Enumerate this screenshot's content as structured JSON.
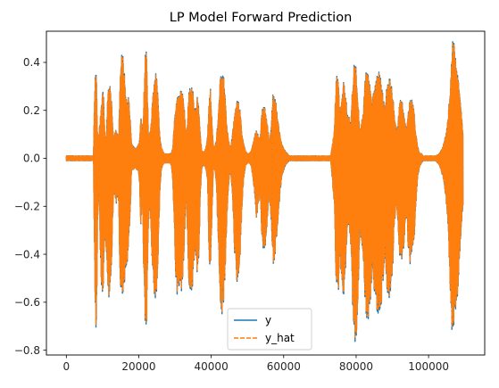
{
  "chart_data": {
    "type": "line",
    "title": "LP Model Forward Prediction",
    "xlabel": "",
    "ylabel": "",
    "xlim": [
      -5500,
      115500
    ],
    "ylim": [
      -0.82,
      0.53
    ],
    "xticks": [
      0,
      20000,
      40000,
      60000,
      80000,
      100000
    ],
    "xtick_labels": [
      "0",
      "20000",
      "40000",
      "60000",
      "80000",
      "100000"
    ],
    "yticks": [
      -0.8,
      -0.6,
      -0.4,
      -0.2,
      0.0,
      0.2,
      0.4
    ],
    "ytick_labels": [
      "−0.8",
      "−0.6",
      "−0.4",
      "−0.2",
      "0.0",
      "0.2",
      "0.4"
    ],
    "grid": false,
    "legend_position": "lower-center",
    "legend": [
      "y",
      "y_hat"
    ],
    "series": [
      {
        "name": "y",
        "color": "#1f77b4",
        "style": "solid",
        "x": [
          0,
          7500,
          7700,
          8000,
          8300,
          8600,
          9000,
          9400,
          9800,
          10200,
          10600,
          11000,
          11400,
          11800,
          12200,
          12600,
          13000,
          13300,
          13700,
          14100,
          14500,
          14800,
          15100,
          15500,
          15900,
          16300,
          16700,
          17100,
          17500,
          18000,
          18500,
          19000,
          19400,
          19800,
          20200,
          20600,
          21000,
          21400,
          21800,
          22200,
          22600,
          23000,
          23400,
          23800,
          24200,
          24600,
          25000,
          25400,
          25800,
          26200,
          26600,
          27000,
          27500,
          28000,
          28500,
          29000,
          29400,
          29800,
          30200,
          30600,
          31000,
          31400,
          31800,
          32200,
          32600,
          33000,
          33400,
          33800,
          34200,
          34600,
          35000,
          35400,
          35800,
          36200,
          36600,
          37000,
          37400,
          37800,
          38200,
          38600,
          39000,
          39400,
          39800,
          40200,
          40600,
          41000,
          41400,
          41800,
          42200,
          42600,
          43000,
          43400,
          43800,
          44200,
          44600,
          45000,
          45400,
          45800,
          46200,
          46600,
          47000,
          47500,
          48000,
          48500,
          49000,
          49500,
          50000,
          50500,
          51000,
          51500,
          52000,
          52500,
          53000,
          53500,
          54000,
          54500,
          55000,
          55500,
          56000,
          56500,
          57000,
          57500,
          58000,
          58500,
          59000,
          59500,
          60000,
          60500,
          61000,
          61500,
          62000,
          63000,
          64000,
          65000,
          66000,
          67000,
          68000,
          69000,
          70000,
          71000,
          72000,
          73000,
          74000,
          74500,
          75000,
          75500,
          76000,
          76500,
          77000,
          77500,
          78000,
          78500,
          79000,
          79500,
          80000,
          80500,
          81000,
          81500,
          82000,
          82500,
          83000,
          83500,
          84000,
          84500,
          85000,
          85500,
          86000,
          86500,
          87000,
          87500,
          88000,
          88500,
          89000,
          89500,
          90000,
          90500,
          91000,
          91500,
          92000,
          92500,
          93000,
          93500,
          94000,
          94500,
          95000,
          95500,
          96000,
          96500,
          97000,
          97500,
          98000,
          98500,
          99000,
          100000,
          101000,
          102000,
          103000,
          104000,
          105000,
          105500,
          106000,
          106500,
          107000,
          107500,
          108000,
          108500,
          109000,
          109500,
          110000,
          110300
        ],
        "top": [
          0.01,
          0.01,
          0.2,
          0.36,
          0.35,
          0.1,
          0.1,
          0.18,
          0.26,
          0.3,
          0.12,
          0.08,
          0.26,
          0.32,
          0.3,
          0.22,
          0.08,
          0.1,
          0.12,
          0.1,
          0.1,
          0.32,
          0.42,
          0.45,
          0.38,
          0.3,
          0.25,
          0.27,
          0.2,
          0.06,
          0.05,
          0.04,
          0.05,
          0.06,
          0.08,
          0.18,
          0.1,
          0.24,
          0.46,
          0.44,
          0.12,
          0.1,
          0.14,
          0.25,
          0.3,
          0.36,
          0.33,
          0.22,
          0.1,
          0.05,
          0.03,
          0.02,
          0.02,
          0.02,
          0.02,
          0.02,
          0.05,
          0.15,
          0.22,
          0.26,
          0.26,
          0.28,
          0.29,
          0.28,
          0.2,
          0.1,
          0.15,
          0.28,
          0.3,
          0.3,
          0.28,
          0.2,
          0.22,
          0.26,
          0.22,
          0.1,
          0.03,
          0.03,
          0.03,
          0.05,
          0.1,
          0.25,
          0.3,
          0.15,
          0.05,
          0.05,
          0.08,
          0.15,
          0.25,
          0.36,
          0.35,
          0.34,
          0.3,
          0.15,
          0.1,
          0.06,
          0.04,
          0.1,
          0.15,
          0.2,
          0.24,
          0.24,
          0.2,
          0.1,
          0.06,
          0.03,
          0.02,
          0.02,
          0.03,
          0.06,
          0.1,
          0.12,
          0.1,
          0.08,
          0.2,
          0.22,
          0.22,
          0.14,
          0.08,
          0.12,
          0.27,
          0.27,
          0.22,
          0.15,
          0.1,
          0.06,
          0.04,
          0.03,
          0.02,
          0.01,
          0.01,
          0.01,
          0.01,
          0.01,
          0.01,
          0.01,
          0.01,
          0.01,
          0.01,
          0.01,
          0.01,
          0.01,
          0.12,
          0.34,
          0.35,
          0.2,
          0.24,
          0.32,
          0.28,
          0.2,
          0.18,
          0.14,
          0.3,
          0.41,
          0.38,
          0.25,
          0.12,
          0.15,
          0.2,
          0.34,
          0.38,
          0.35,
          0.28,
          0.25,
          0.3,
          0.34,
          0.38,
          0.36,
          0.32,
          0.26,
          0.2,
          0.32,
          0.35,
          0.33,
          0.28,
          0.2,
          0.12,
          0.14,
          0.24,
          0.25,
          0.22,
          0.15,
          0.12,
          0.22,
          0.25,
          0.24,
          0.2,
          0.1,
          0.05,
          0.02,
          0.02,
          0.01,
          0.01,
          0.01,
          0.01,
          0.01,
          0.02,
          0.05,
          0.12,
          0.2,
          0.3,
          0.49,
          0.5,
          0.42,
          0.35,
          0.3,
          0.2,
          0.1
        ],
        "bottom": [
          -0.01,
          -0.01,
          -0.3,
          -0.68,
          -0.76,
          -0.3,
          -0.1,
          -0.4,
          -0.58,
          -0.6,
          -0.3,
          -0.4,
          -0.58,
          -0.6,
          -0.55,
          -0.4,
          -0.15,
          -0.15,
          -0.2,
          -0.15,
          -0.2,
          -0.55,
          -0.58,
          -0.58,
          -0.55,
          -0.5,
          -0.45,
          -0.4,
          -0.3,
          -0.05,
          -0.05,
          -0.04,
          -0.05,
          -0.05,
          -0.1,
          -0.3,
          -0.15,
          -0.5,
          -0.72,
          -0.7,
          -0.3,
          -0.2,
          -0.3,
          -0.5,
          -0.56,
          -0.6,
          -0.55,
          -0.38,
          -0.15,
          -0.05,
          -0.03,
          -0.02,
          -0.02,
          -0.02,
          -0.02,
          -0.03,
          -0.1,
          -0.3,
          -0.5,
          -0.6,
          -0.55,
          -0.52,
          -0.56,
          -0.5,
          -0.35,
          -0.15,
          -0.3,
          -0.55,
          -0.56,
          -0.55,
          -0.52,
          -0.4,
          -0.45,
          -0.5,
          -0.4,
          -0.15,
          -0.04,
          -0.03,
          -0.03,
          -0.05,
          -0.1,
          -0.42,
          -0.47,
          -0.25,
          -0.05,
          -0.05,
          -0.1,
          -0.3,
          -0.5,
          -0.62,
          -0.65,
          -0.6,
          -0.5,
          -0.3,
          -0.15,
          -0.08,
          -0.05,
          -0.15,
          -0.3,
          -0.45,
          -0.52,
          -0.5,
          -0.4,
          -0.2,
          -0.08,
          -0.03,
          -0.02,
          -0.02,
          -0.03,
          -0.08,
          -0.15,
          -0.25,
          -0.2,
          -0.15,
          -0.35,
          -0.4,
          -0.38,
          -0.25,
          -0.15,
          -0.25,
          -0.45,
          -0.43,
          -0.35,
          -0.25,
          -0.15,
          -0.08,
          -0.05,
          -0.03,
          -0.02,
          -0.01,
          -0.01,
          -0.01,
          -0.01,
          -0.01,
          -0.01,
          -0.01,
          -0.01,
          -0.01,
          -0.01,
          -0.01,
          -0.01,
          -0.01,
          -0.2,
          -0.55,
          -0.6,
          -0.4,
          -0.5,
          -0.58,
          -0.5,
          -0.3,
          -0.3,
          -0.35,
          -0.6,
          -0.78,
          -0.78,
          -0.6,
          -0.3,
          -0.35,
          -0.45,
          -0.62,
          -0.7,
          -0.66,
          -0.58,
          -0.5,
          -0.55,
          -0.62,
          -0.68,
          -0.65,
          -0.6,
          -0.5,
          -0.4,
          -0.55,
          -0.6,
          -0.58,
          -0.5,
          -0.3,
          -0.2,
          -0.25,
          -0.42,
          -0.44,
          -0.4,
          -0.3,
          -0.25,
          -0.42,
          -0.45,
          -0.4,
          -0.35,
          -0.2,
          -0.08,
          -0.04,
          -0.02,
          -0.01,
          -0.01,
          -0.01,
          -0.01,
          -0.01,
          -0.03,
          -0.08,
          -0.2,
          -0.35,
          -0.55,
          -0.74,
          -0.72,
          -0.68,
          -0.6,
          -0.45,
          -0.3,
          -0.2
        ]
      },
      {
        "name": "y_hat",
        "color": "#ff7f0e",
        "style": "dashed"
      }
    ]
  }
}
